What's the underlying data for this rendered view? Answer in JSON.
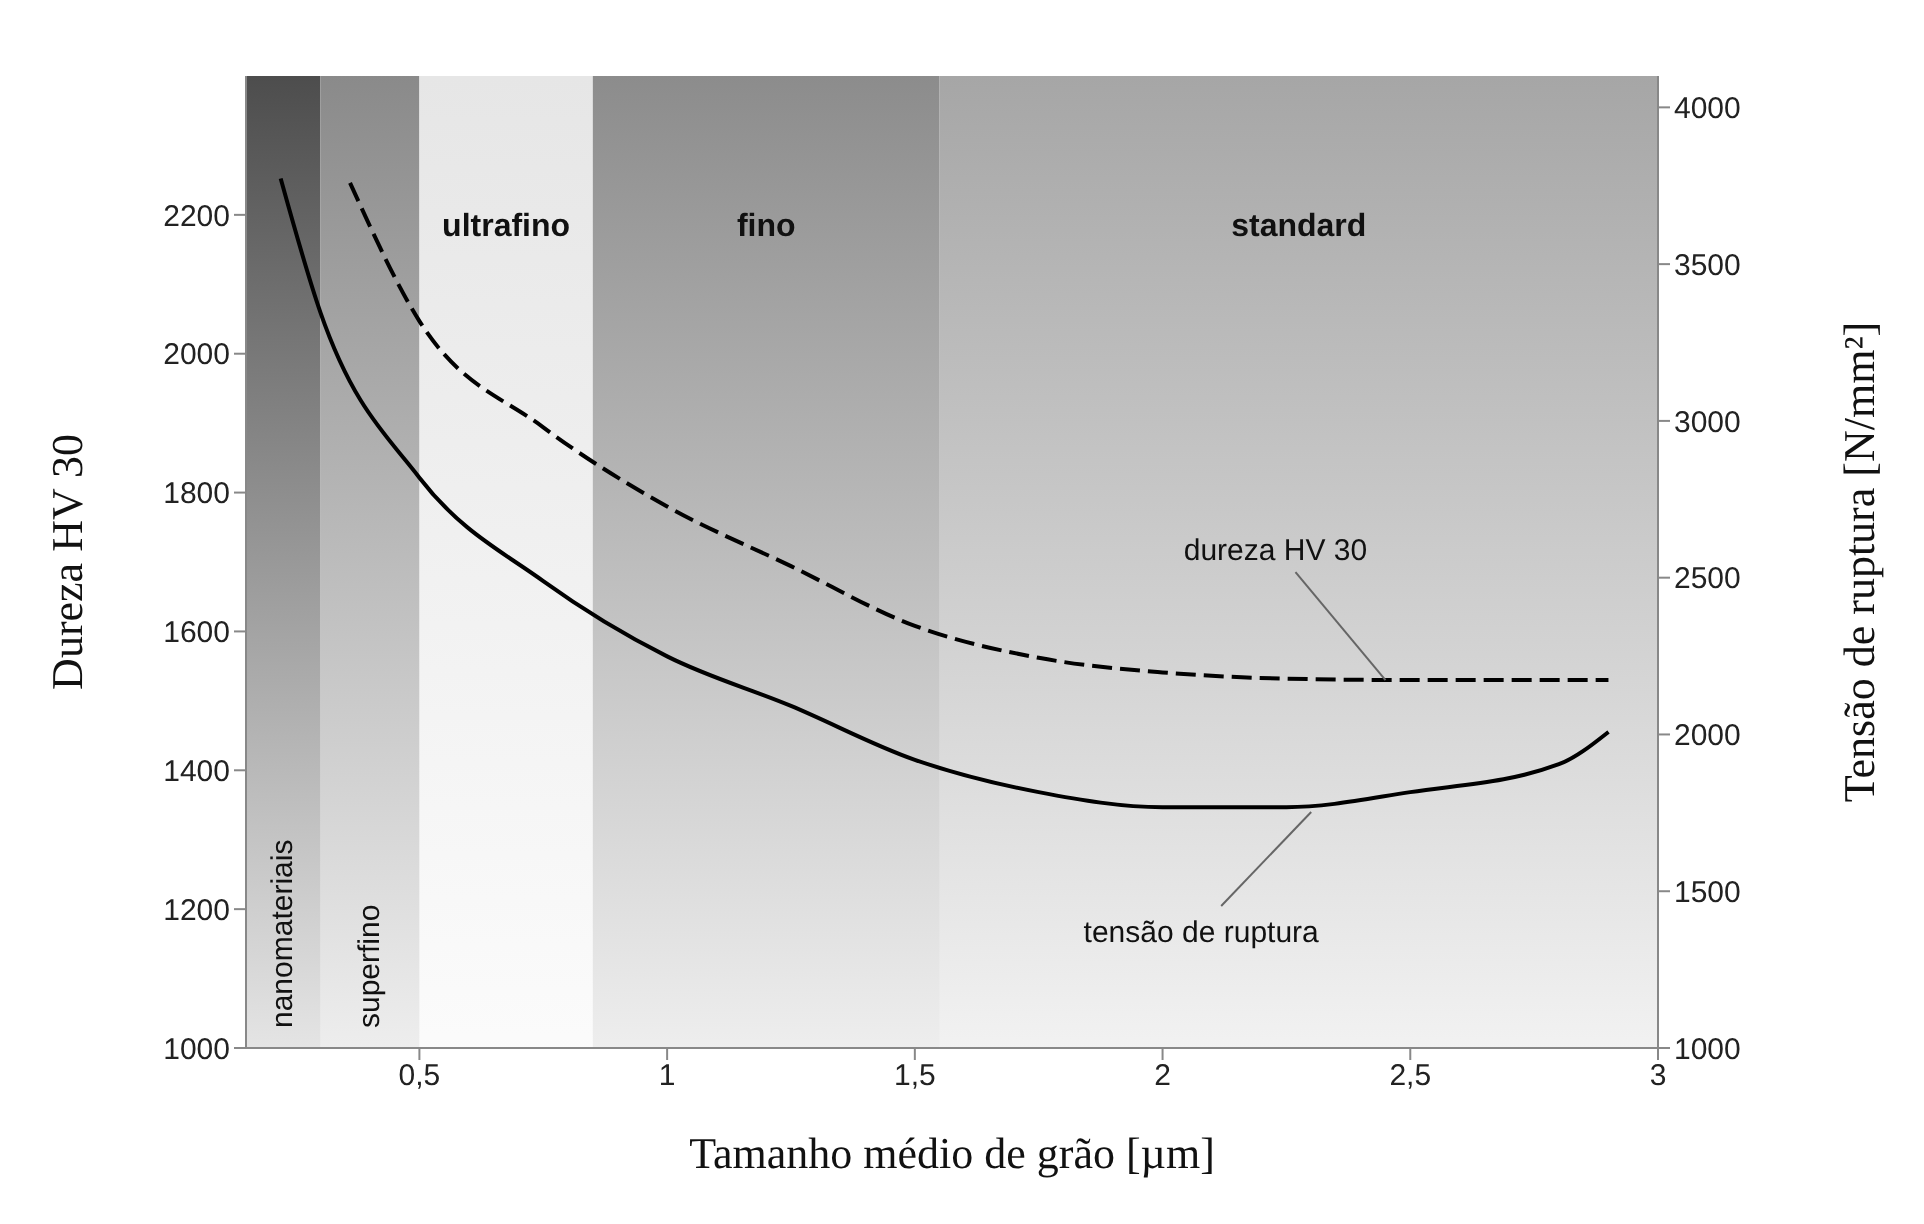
{
  "chart_data": {
    "type": "line",
    "xlabel": "Tamanho médio de grão [µm]",
    "ylabel": "Dureza HV 30",
    "y2label": "Tensão de ruptura [N/mm²]",
    "xlim": [
      0.15,
      3
    ],
    "xticks": [
      {
        "value": 0.5,
        "label": "0,5"
      },
      1,
      {
        "value": 1.5,
        "label": "1,5"
      },
      2,
      {
        "value": 2.5,
        "label": "2,5"
      },
      3
    ],
    "ylim": [
      1000,
      2400
    ],
    "yticks": [
      1000,
      1200,
      1400,
      1600,
      1800,
      2000,
      2200
    ],
    "y2lim": [
      1000,
      4100
    ],
    "y2ticks": [
      1000,
      1500,
      2000,
      2500,
      3000,
      3500,
      4000
    ],
    "marker": "none",
    "series": [
      {
        "color": "#000000",
        "line_style": "dashed",
        "x": [
          0.36,
          0.5,
          0.75,
          1.0,
          1.25,
          1.5,
          1.75,
          2.0,
          2.25,
          2.5,
          2.9
        ],
        "values": [
          2246,
          2047,
          1894,
          1780,
          1694,
          1608,
          1562,
          1541,
          1532,
          1530,
          1530
        ]
      },
      {
        "color": "#000000",
        "line_style": "solid",
        "axis": "y2",
        "x": [
          0.22,
          0.3,
          0.5,
          0.75,
          1.0,
          1.25,
          1.5,
          1.75,
          2.0,
          2.25,
          2.5,
          2.8,
          2.9
        ],
        "values": [
          3773,
          3347,
          2819,
          2489,
          2249,
          2091,
          1919,
          1816,
          1768,
          1768,
          1816,
          1905,
          2008
        ]
      }
    ],
    "bands": [
      {
        "axis": "x",
        "from": 0.15,
        "to": 0.3,
        "label": "nanomateriais",
        "color": "#4d4d4d"
      },
      {
        "axis": "x",
        "from": 0.3,
        "to": 0.5,
        "label": "superfino",
        "color": "#8a8a8a"
      },
      {
        "axis": "x",
        "from": 0.5,
        "to": 0.85,
        "label": "ultrafino",
        "color": "#e6e6e6"
      },
      {
        "axis": "x",
        "from": 0.85,
        "to": 1.55,
        "label": "fino",
        "color": "#8c8c8c"
      },
      {
        "axis": "x",
        "from": 1.55,
        "to": 3,
        "label": "standard",
        "color": "#a6a6a6"
      }
    ],
    "annotations": [
      {
        "text": "dureza HV 30",
        "x": 2.45,
        "y": 1530
      },
      {
        "text": "tensão de ruptura",
        "x": 2.3,
        "y": 1340
      }
    ]
  }
}
